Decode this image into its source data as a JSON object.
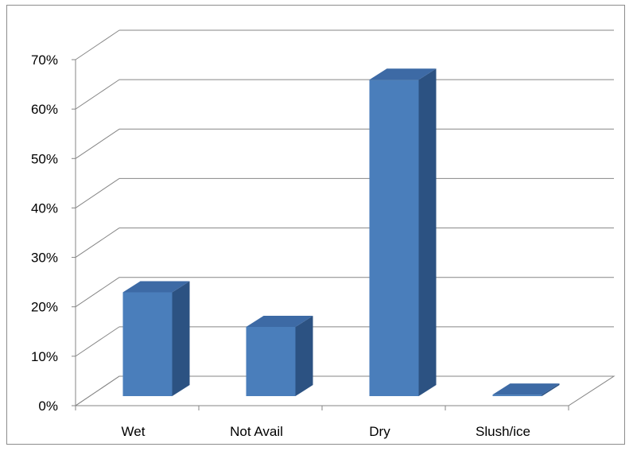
{
  "chart_data": {
    "type": "bar",
    "style": "3d-column",
    "categories": [
      "Wet",
      "Not Avail",
      "Dry",
      "Slush/ice"
    ],
    "values": [
      21,
      14,
      64,
      0.3
    ],
    "unit": "%",
    "ylim": [
      0,
      70
    ],
    "yticks": [
      "0%",
      "10%",
      "20%",
      "30%",
      "40%",
      "50%",
      "60%",
      "70%"
    ],
    "grid": true,
    "legend": "none",
    "colors": {
      "bar_front": "#4a7ebb",
      "bar_top": "#3d6aa5",
      "bar_side": "#2c5282",
      "gridline": "#868686",
      "axis": "#868686"
    }
  }
}
